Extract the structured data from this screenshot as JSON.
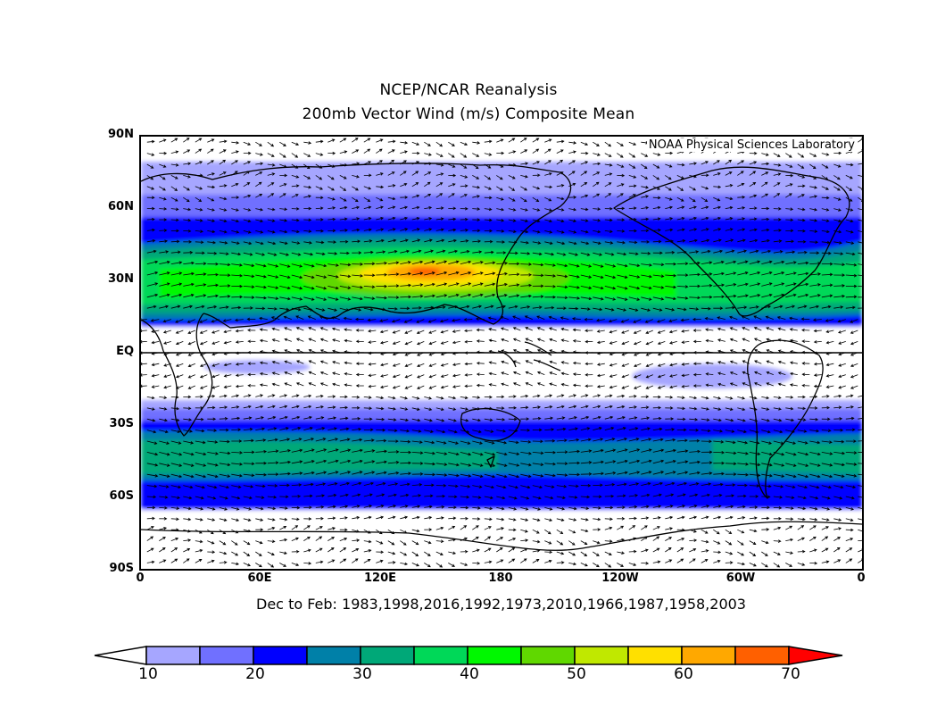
{
  "title": {
    "line1": "NCEP/NCAR Reanalysis",
    "line2": "200mb Vector Wind (m/s) Composite Mean"
  },
  "credit": "NOAA Physical Sciences Laboratory",
  "subtitle": "Dec to Feb: 1983,1998,2016,1992,1973,2010,1966,1987,1958,2003",
  "lat_labels": [
    "90N",
    "60N",
    "30N",
    "EQ",
    "30S",
    "60S",
    "90S"
  ],
  "lon_labels": [
    "0",
    "60E",
    "120E",
    "180",
    "120W",
    "60W",
    "0"
  ],
  "colorbar": {
    "labels": [
      "10",
      "20",
      "30",
      "40",
      "50",
      "60",
      "70"
    ],
    "colors": [
      "#ffffff",
      "#a6a6ff",
      "#7070ff",
      "#0000ff",
      "#0080a8",
      "#00a878",
      "#00d858",
      "#00f800",
      "#60d800",
      "#c0e800",
      "#ffe000",
      "#ffa800",
      "#ff6000",
      "#ff0000"
    ]
  },
  "colors": {
    "land_outline": "#000000",
    "arrows": "#000000"
  }
}
